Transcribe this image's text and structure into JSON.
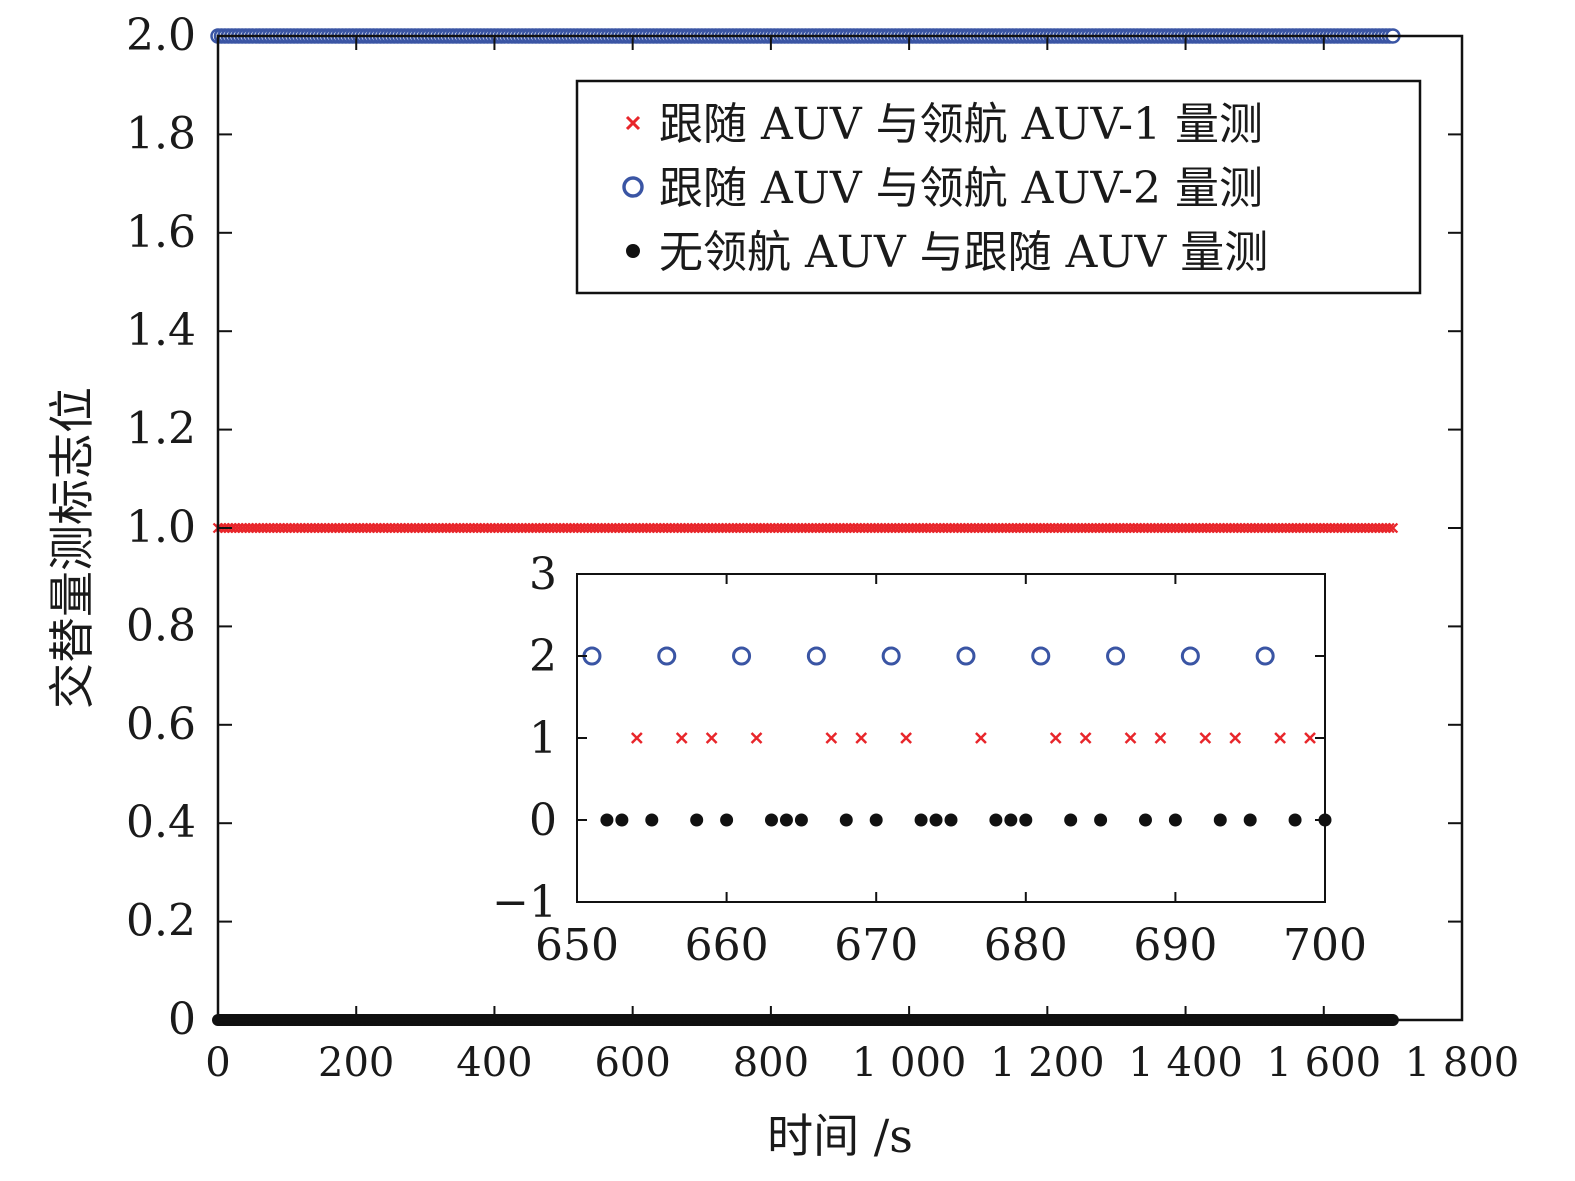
{
  "chart_data": [
    {
      "type": "scatter",
      "xlabel": "时间 /s",
      "ylabel": "交替量测标志位",
      "xlim": [
        0,
        1800
      ],
      "ylim": [
        0,
        2.0
      ],
      "xticks": [
        {
          "value": 0,
          "label": "0"
        },
        {
          "value": 200,
          "label": "200"
        },
        {
          "value": 400,
          "label": "400"
        },
        {
          "value": 600,
          "label": "600"
        },
        {
          "value": 800,
          "label": "800"
        },
        {
          "value": 1000,
          "label": "1 000"
        },
        {
          "value": 1200,
          "label": "1 200"
        },
        {
          "value": 1400,
          "label": "1 400"
        },
        {
          "value": 1600,
          "label": "1 600"
        },
        {
          "value": 1800,
          "label": "1 800"
        }
      ],
      "yticks": [
        {
          "value": 0,
          "label": "0"
        },
        {
          "value": 0.2,
          "label": "0.2"
        },
        {
          "value": 0.4,
          "label": "0.4"
        },
        {
          "value": 0.6,
          "label": "0.6"
        },
        {
          "value": 0.8,
          "label": "0.8"
        },
        {
          "value": 1.0,
          "label": "1.0"
        },
        {
          "value": 1.2,
          "label": "1.2"
        },
        {
          "value": 1.4,
          "label": "1.4"
        },
        {
          "value": 1.6,
          "label": "1.6"
        },
        {
          "value": 1.8,
          "label": "1.8"
        },
        {
          "value": 2.0,
          "label": "2.0"
        }
      ],
      "legend_position": "top-right",
      "grid": false,
      "series": [
        {
          "name": "跟随 AUV 与领航 AUV-1 量测",
          "marker": "x",
          "color": "#e8262b",
          "y": 1,
          "x_range": [
            0,
            1700
          ],
          "x_step": 5
        },
        {
          "name": "跟随 AUV 与领航 AUV-2 量测",
          "marker": "o",
          "color": "#3a55a4",
          "y": 2,
          "x_range": [
            0,
            1700
          ],
          "x_step": 5
        },
        {
          "name": "无领航 AUV 与跟随 AUV 量测",
          "marker": "dot",
          "color": "#111111",
          "y": 0,
          "x_range": [
            0,
            1700
          ],
          "x_step": 2
        }
      ]
    },
    {
      "type": "scatter",
      "inset": true,
      "xlim": [
        650,
        700
      ],
      "ylim": [
        -1,
        3
      ],
      "xticks": [
        {
          "value": 650,
          "label": "650"
        },
        {
          "value": 660,
          "label": "660"
        },
        {
          "value": 670,
          "label": "670"
        },
        {
          "value": 680,
          "label": "680"
        },
        {
          "value": 690,
          "label": "690"
        },
        {
          "value": 700,
          "label": "700"
        }
      ],
      "yticks": [
        {
          "value": -1,
          "label": "−1"
        },
        {
          "value": 0,
          "label": "0"
        },
        {
          "value": 1,
          "label": "1"
        },
        {
          "value": 2,
          "label": "2"
        },
        {
          "value": 3,
          "label": "3"
        }
      ],
      "series": [
        {
          "marker": "o",
          "color": "#3a55a4",
          "y": 2,
          "x": [
            651,
            656,
            661,
            666,
            671,
            676,
            681,
            686,
            691,
            696
          ]
        },
        {
          "marker": "x",
          "color": "#e8262b",
          "y": 1,
          "x": [
            654,
            657,
            659,
            662,
            667,
            669,
            672,
            677,
            682,
            684,
            687,
            689,
            692,
            694,
            697,
            699
          ]
        },
        {
          "marker": "dot",
          "color": "#111111",
          "y": 0,
          "x": [
            652,
            653,
            655,
            658,
            660,
            663,
            664,
            665,
            668,
            670,
            673,
            674,
            675,
            678,
            679,
            680,
            683,
            685,
            688,
            690,
            693,
            695,
            698,
            700
          ]
        }
      ]
    }
  ]
}
